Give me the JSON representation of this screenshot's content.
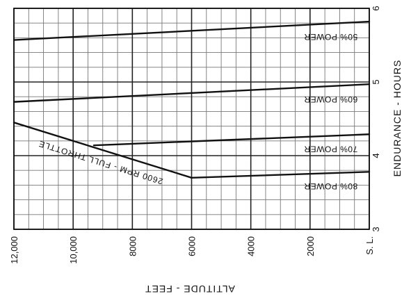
{
  "chart_data": {
    "type": "line",
    "title": "",
    "xlabel": "ALTITUDE - FEET",
    "ylabel": "ENDURANCE - HOURS",
    "x_ticks": [
      {
        "value": 12000,
        "label": "12,000"
      },
      {
        "value": 10000,
        "label": "10,000"
      },
      {
        "value": 8000,
        "label": "8000"
      },
      {
        "value": 6000,
        "label": "6000"
      },
      {
        "value": 4000,
        "label": "4000"
      },
      {
        "value": 2000,
        "label": "2000"
      },
      {
        "value": 0,
        "label": "S. L."
      }
    ],
    "y_ticks": [
      {
        "value": 3,
        "label": "3"
      },
      {
        "value": 4,
        "label": "4"
      },
      {
        "value": 5,
        "label": "5"
      },
      {
        "value": 6,
        "label": "6"
      }
    ],
    "xlim": [
      0,
      12000
    ],
    "ylim": [
      3,
      6
    ],
    "grid": true,
    "series": [
      {
        "name": "50% POWER",
        "points": [
          [
            0,
            5.82
          ],
          [
            12000,
            5.57
          ]
        ]
      },
      {
        "name": "60% POWER",
        "points": [
          [
            0,
            4.97
          ],
          [
            12000,
            4.73
          ]
        ]
      },
      {
        "name": "70% POWER",
        "points": [
          [
            0,
            4.29
          ],
          [
            9300,
            4.14
          ]
        ]
      },
      {
        "name": "80% POWER",
        "points": [
          [
            0,
            3.78
          ],
          [
            6000,
            3.7
          ]
        ]
      },
      {
        "name": "2600 RPM - FULL THROTTLE",
        "points": [
          [
            12000,
            4.45
          ],
          [
            6000,
            3.7
          ]
        ]
      }
    ]
  }
}
